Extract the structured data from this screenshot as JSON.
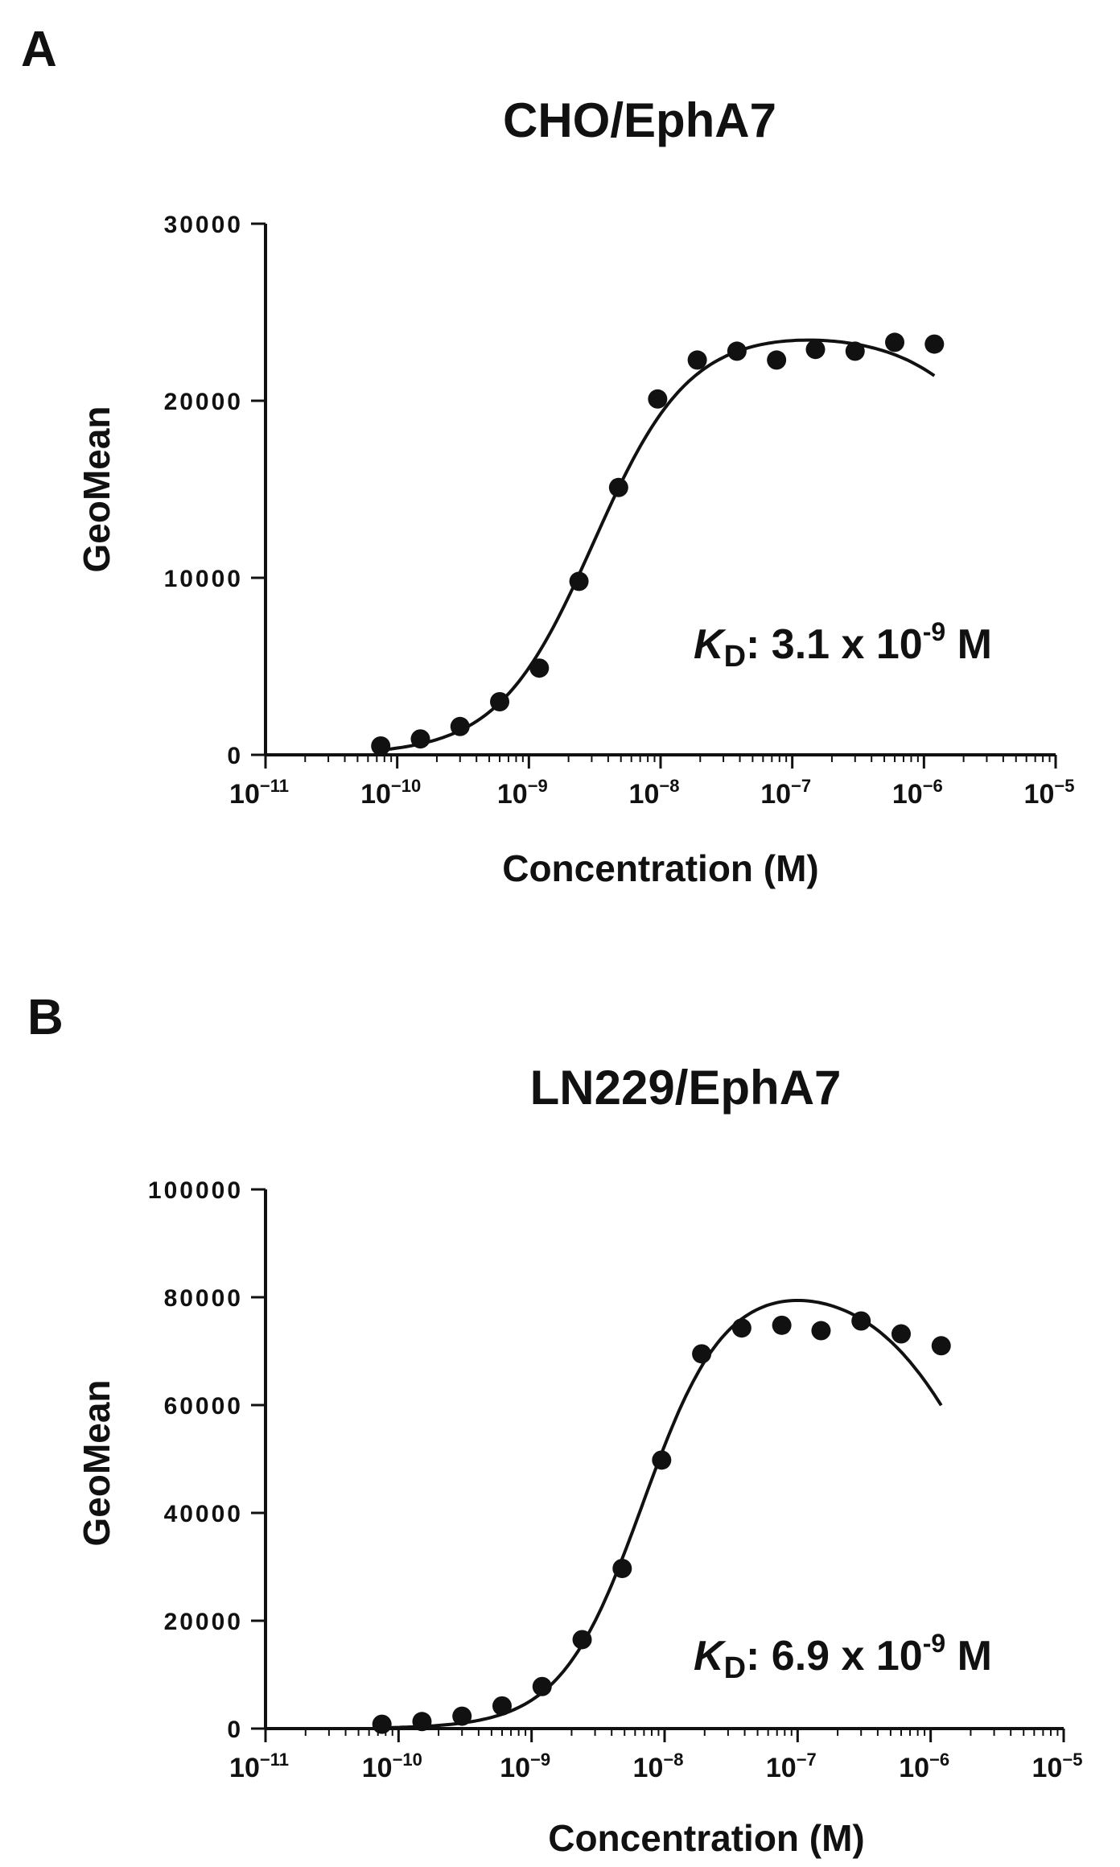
{
  "panels": [
    {
      "letter": "A"
    },
    {
      "letter": "B"
    }
  ],
  "chart_data": [
    {
      "type": "scatter",
      "title": "CHO/EphA7",
      "xlabel": "Concentration (M)",
      "ylabel": "GeoMean",
      "x_scale": "log",
      "xlim": [
        1e-11,
        1e-05
      ],
      "ylim": [
        0,
        30000
      ],
      "xticks": [
        1e-11,
        1e-10,
        1e-09,
        1e-08,
        1e-07,
        1e-06,
        1e-05
      ],
      "xtick_labels": [
        {
          "base": "10",
          "exp": "−11"
        },
        {
          "base": "10",
          "exp": "−10"
        },
        {
          "base": "10",
          "exp": "−9"
        },
        {
          "base": "10",
          "exp": "−8"
        },
        {
          "base": "10",
          "exp": "−7"
        },
        {
          "base": "10",
          "exp": "−6"
        },
        {
          "base": "10",
          "exp": "−5"
        }
      ],
      "yticks": [
        0,
        10000,
        20000,
        30000
      ],
      "ytick_labels": [
        "0",
        "10000",
        "20000",
        "30000"
      ],
      "annotation": {
        "k": "K",
        "sub": "D",
        "value": ": 3.1 x 10",
        "exp": "-9",
        "unit": " M"
      },
      "fit": {
        "model": "bell-shaped",
        "bottom": 0,
        "top": 24000,
        "kd": 3.1e-09,
        "hill": 1.2,
        "inhibition_ic50": 1e-05
      },
      "series": [
        {
          "x": [
            7.5e-11,
            1.5e-10,
            3e-10,
            6e-10,
            1.2e-09,
            2.4e-09,
            4.8e-09,
            9.5e-09,
            1.9e-08,
            3.8e-08,
            7.6e-08,
            1.5e-07,
            3e-07,
            6e-07,
            1.2e-06
          ],
          "y": [
            500,
            900,
            1600,
            3000,
            4900,
            9800,
            15100,
            20100,
            22300,
            22800,
            22300,
            22900,
            22800,
            23300,
            23200
          ]
        }
      ]
    },
    {
      "type": "scatter",
      "title": "LN229/EphA7",
      "xlabel": "Concentration (M)",
      "ylabel": "GeoMean",
      "x_scale": "log",
      "xlim": [
        1e-11,
        1e-05
      ],
      "ylim": [
        0,
        100000
      ],
      "xticks": [
        1e-11,
        1e-10,
        1e-09,
        1e-08,
        1e-07,
        1e-06,
        1e-05
      ],
      "xtick_labels": [
        {
          "base": "10",
          "exp": "−11"
        },
        {
          "base": "10",
          "exp": "−10"
        },
        {
          "base": "10",
          "exp": "−9"
        },
        {
          "base": "10",
          "exp": "−8"
        },
        {
          "base": "10",
          "exp": "−7"
        },
        {
          "base": "10",
          "exp": "−6"
        },
        {
          "base": "10",
          "exp": "−5"
        }
      ],
      "yticks": [
        0,
        20000,
        40000,
        60000,
        80000,
        100000
      ],
      "ytick_labels": [
        "0",
        "20000",
        "40000",
        "60000",
        "80000",
        "100000"
      ],
      "annotation": {
        "k": "K",
        "sub": "D",
        "value": ":  6.9 x 10",
        "exp": "-9",
        "unit": " M"
      },
      "fit": {
        "model": "bell-shaped",
        "bottom": 0,
        "top": 84000,
        "kd": 6.9e-09,
        "hill": 1.4,
        "inhibition_ic50": 3e-06
      },
      "series": [
        {
          "x": [
            7.5e-11,
            1.5e-10,
            3e-10,
            6e-10,
            1.2e-09,
            2.4e-09,
            4.8e-09,
            9.5e-09,
            1.9e-08,
            3.8e-08,
            7.6e-08,
            1.5e-07,
            3e-07,
            6e-07,
            1.2e-06
          ],
          "y": [
            800,
            1300,
            2300,
            4200,
            7800,
            16500,
            29700,
            49800,
            69500,
            74300,
            74800,
            73800,
            75600,
            73200,
            71000
          ]
        }
      ]
    }
  ]
}
